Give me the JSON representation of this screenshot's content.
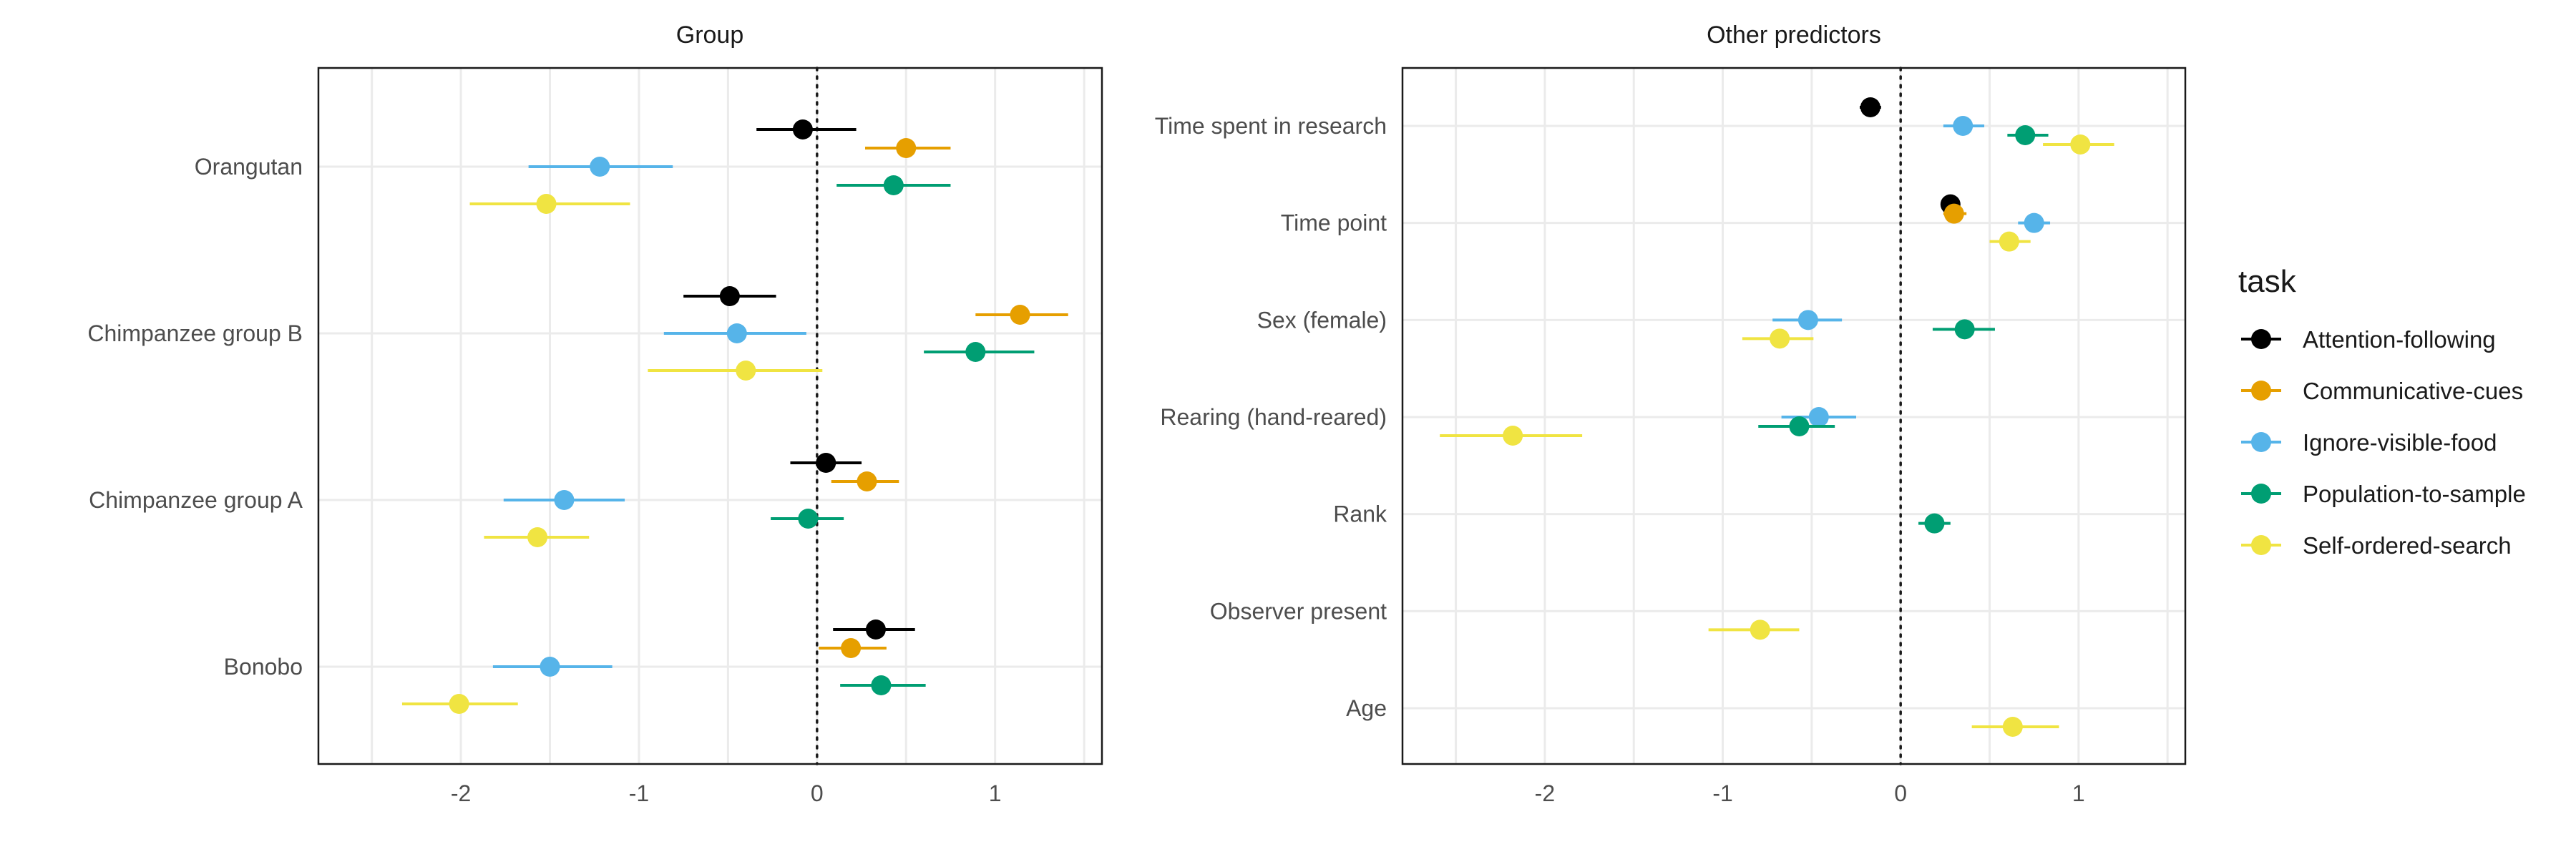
{
  "legend": {
    "title": "task",
    "entries": [
      {
        "name": "Attention-following",
        "color": "#000000"
      },
      {
        "name": "Communicative-cues",
        "color": "#E69F00"
      },
      {
        "name": "Ignore-visible-food",
        "color": "#56B4E9"
      },
      {
        "name": "Population-to-sample",
        "color": "#009E73"
      },
      {
        "name": "Self-ordered-search",
        "color": "#F0E442"
      }
    ]
  },
  "chart_data": [
    {
      "type": "scatter",
      "subtype": "coefficient-plot",
      "title": "Group",
      "xlabel": "",
      "ylabel": "",
      "xlim": [
        -2.8,
        1.6
      ],
      "xticks": [
        -2,
        -1,
        0,
        1
      ],
      "xtick_labels": [
        "-2",
        "-1",
        "0",
        "1"
      ],
      "reference_line_x": 0,
      "grid": true,
      "categories": [
        "Orangutan",
        "Chimpanzee group B",
        "Chimpanzee group A",
        "Bonobo"
      ],
      "series": [
        {
          "name": "Attention-following",
          "points": [
            {
              "category": "Orangutan",
              "estimate": -0.08,
              "lower": -0.34,
              "upper": 0.22
            },
            {
              "category": "Chimpanzee group B",
              "estimate": -0.49,
              "lower": -0.75,
              "upper": -0.23
            },
            {
              "category": "Chimpanzee group A",
              "estimate": 0.05,
              "lower": -0.15,
              "upper": 0.25
            },
            {
              "category": "Bonobo",
              "estimate": 0.33,
              "lower": 0.09,
              "upper": 0.55
            }
          ]
        },
        {
          "name": "Communicative-cues",
          "points": [
            {
              "category": "Orangutan",
              "estimate": 0.5,
              "lower": 0.27,
              "upper": 0.75
            },
            {
              "category": "Chimpanzee group B",
              "estimate": 1.14,
              "lower": 0.89,
              "upper": 1.41
            },
            {
              "category": "Chimpanzee group A",
              "estimate": 0.28,
              "lower": 0.08,
              "upper": 0.46
            },
            {
              "category": "Bonobo",
              "estimate": 0.19,
              "lower": 0.01,
              "upper": 0.39
            }
          ]
        },
        {
          "name": "Ignore-visible-food",
          "points": [
            {
              "category": "Orangutan",
              "estimate": -1.22,
              "lower": -1.62,
              "upper": -0.81
            },
            {
              "category": "Chimpanzee group B",
              "estimate": -0.45,
              "lower": -0.86,
              "upper": -0.06
            },
            {
              "category": "Chimpanzee group A",
              "estimate": -1.42,
              "lower": -1.76,
              "upper": -1.08
            },
            {
              "category": "Bonobo",
              "estimate": -1.5,
              "lower": -1.82,
              "upper": -1.15
            }
          ]
        },
        {
          "name": "Population-to-sample",
          "points": [
            {
              "category": "Orangutan",
              "estimate": 0.43,
              "lower": 0.11,
              "upper": 0.75
            },
            {
              "category": "Chimpanzee group B",
              "estimate": 0.89,
              "lower": 0.6,
              "upper": 1.22
            },
            {
              "category": "Chimpanzee group A",
              "estimate": -0.05,
              "lower": -0.26,
              "upper": 0.15
            },
            {
              "category": "Bonobo",
              "estimate": 0.36,
              "lower": 0.13,
              "upper": 0.61
            }
          ]
        },
        {
          "name": "Self-ordered-search",
          "points": [
            {
              "category": "Orangutan",
              "estimate": -1.52,
              "lower": -1.95,
              "upper": -1.05
            },
            {
              "category": "Chimpanzee group B",
              "estimate": -0.4,
              "lower": -0.95,
              "upper": 0.03
            },
            {
              "category": "Chimpanzee group A",
              "estimate": -1.57,
              "lower": -1.87,
              "upper": -1.28
            },
            {
              "category": "Bonobo",
              "estimate": -2.01,
              "lower": -2.33,
              "upper": -1.68
            }
          ]
        }
      ]
    },
    {
      "type": "scatter",
      "subtype": "coefficient-plot",
      "title": "Other predictors",
      "xlabel": "",
      "ylabel": "",
      "xlim": [
        -2.8,
        1.6
      ],
      "xticks": [
        -2,
        -1,
        0,
        1
      ],
      "xtick_labels": [
        "-2",
        "-1",
        "0",
        "1"
      ],
      "reference_line_x": 0,
      "grid": true,
      "categories": [
        "Time spent in research",
        "Time point",
        "Sex (female)",
        "Rearing (hand-reared)",
        "Rank",
        "Observer present",
        "Age"
      ],
      "series": [
        {
          "name": "Attention-following",
          "points": [
            {
              "category": "Time spent in research",
              "estimate": -0.17,
              "lower": -0.23,
              "upper": -0.11
            },
            {
              "category": "Time point",
              "estimate": 0.28,
              "lower": 0.24,
              "upper": 0.32
            }
          ]
        },
        {
          "name": "Communicative-cues",
          "points": [
            {
              "category": "Time point",
              "estimate": 0.3,
              "lower": 0.24,
              "upper": 0.37
            }
          ]
        },
        {
          "name": "Ignore-visible-food",
          "points": [
            {
              "category": "Time spent in research",
              "estimate": 0.35,
              "lower": 0.24,
              "upper": 0.47
            },
            {
              "category": "Time point",
              "estimate": 0.75,
              "lower": 0.66,
              "upper": 0.84
            },
            {
              "category": "Sex (female)",
              "estimate": -0.52,
              "lower": -0.72,
              "upper": -0.33
            },
            {
              "category": "Rearing (hand-reared)",
              "estimate": -0.46,
              "lower": -0.67,
              "upper": -0.25
            }
          ]
        },
        {
          "name": "Population-to-sample",
          "points": [
            {
              "category": "Time spent in research",
              "estimate": 0.7,
              "lower": 0.6,
              "upper": 0.83
            },
            {
              "category": "Sex (female)",
              "estimate": 0.36,
              "lower": 0.18,
              "upper": 0.53
            },
            {
              "category": "Rearing (hand-reared)",
              "estimate": -0.57,
              "lower": -0.8,
              "upper": -0.37
            },
            {
              "category": "Rank",
              "estimate": 0.19,
              "lower": 0.1,
              "upper": 0.28
            }
          ]
        },
        {
          "name": "Self-ordered-search",
          "points": [
            {
              "category": "Time spent in research",
              "estimate": 1.01,
              "lower": 0.8,
              "upper": 1.2
            },
            {
              "category": "Time point",
              "estimate": 0.61,
              "lower": 0.5,
              "upper": 0.73
            },
            {
              "category": "Sex (female)",
              "estimate": -0.68,
              "lower": -0.89,
              "upper": -0.49
            },
            {
              "category": "Rearing (hand-reared)",
              "estimate": -2.18,
              "lower": -2.59,
              "upper": -1.79
            },
            {
              "category": "Observer present",
              "estimate": -0.79,
              "lower": -1.08,
              "upper": -0.57
            },
            {
              "category": "Age",
              "estimate": 0.63,
              "lower": 0.4,
              "upper": 0.89
            }
          ]
        }
      ]
    }
  ]
}
